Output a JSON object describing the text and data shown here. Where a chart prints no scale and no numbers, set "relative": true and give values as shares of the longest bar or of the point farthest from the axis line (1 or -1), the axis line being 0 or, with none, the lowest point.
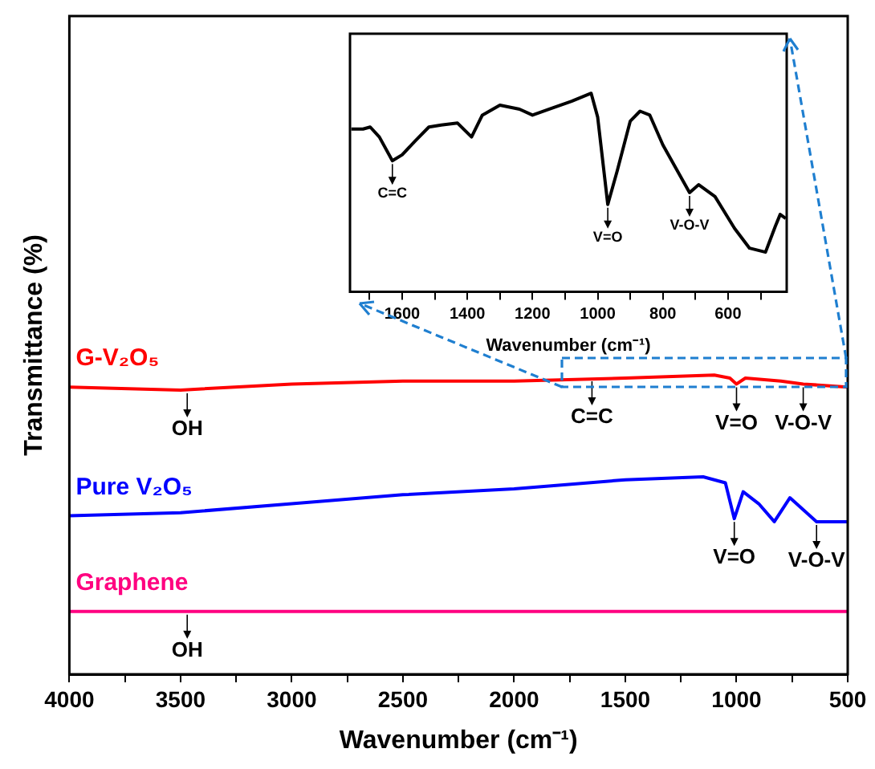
{
  "chart_data": [
    {
      "type": "line",
      "xlabel": "Wavenumber (cm⁻¹)",
      "ylabel": "Transmittance (%)",
      "relative": true,
      "legend": false,
      "grid": false,
      "xlim": [
        4000,
        500
      ],
      "xticks": [
        4000,
        {
          "value": 3750,
          "label": null
        },
        3500,
        {
          "value": 3250,
          "label": null
        },
        3000,
        {
          "value": 2750,
          "label": null
        },
        2500,
        {
          "value": 2250,
          "label": null
        },
        2000,
        {
          "value": 1750,
          "label": null
        },
        1500,
        {
          "value": 1250,
          "label": null
        },
        1000,
        {
          "value": 750,
          "label": null
        },
        500
      ],
      "series": [
        {
          "name": "G-V₂O₅",
          "color": "#ff0000",
          "x": [
            4000,
            3500,
            3000,
            2500,
            2000,
            1500,
            1100,
            1030,
            1000,
            960,
            800,
            700,
            500
          ],
          "values": [
            0.96,
            0.95,
            0.97,
            0.98,
            0.98,
            0.99,
            1,
            0.99,
            0.97,
            0.99,
            0.98,
            0.97,
            0.96
          ]
        },
        {
          "name": "Pure V₂O₅",
          "color": "#0000ff",
          "x": [
            4000,
            3500,
            3000,
            2500,
            2000,
            1500,
            1150,
            1050,
            1010,
            970,
            900,
            830,
            760,
            700,
            640,
            500
          ],
          "values": [
            0.53,
            0.54,
            0.57,
            0.6,
            0.62,
            0.65,
            0.66,
            0.64,
            0.52,
            0.61,
            0.57,
            0.51,
            0.59,
            0.55,
            0.51,
            0.51
          ]
        },
        {
          "name": "Graphene",
          "color": "#ff0080",
          "x": [
            4000,
            3000,
            2000,
            1000,
            500
          ],
          "values": [
            0.21,
            0.21,
            0.21,
            0.21,
            0.21
          ]
        }
      ],
      "annotations": [
        {
          "text": "OH",
          "x": 3470,
          "y": 0.95
        },
        {
          "text": "C=C",
          "x": 1650,
          "y": 0.99
        },
        {
          "text": "V=O",
          "x": 1000,
          "y": 0.97
        },
        {
          "text": "V-O-V",
          "x": 700,
          "y": 0.97
        },
        {
          "text": "V=O",
          "x": 1010,
          "y": 0.52
        },
        {
          "text": "V-O-V",
          "x": 640,
          "y": 0.51
        },
        {
          "text": "OH",
          "x": 3470,
          "y": 0.21
        }
      ]
    },
    {
      "type": "line",
      "xlabel": "Wavenumber (cm⁻¹)",
      "relative": true,
      "legend": false,
      "grid": false,
      "xlim": [
        1760,
        420
      ],
      "xticks": [
        {
          "value": 1700,
          "label": null
        },
        1600,
        {
          "value": 1500,
          "label": null
        },
        1400,
        {
          "value": 1300,
          "label": null
        },
        1200,
        {
          "value": 1100,
          "label": null
        },
        1000,
        {
          "value": 900,
          "label": null
        },
        800,
        {
          "value": 700,
          "label": null
        },
        600,
        {
          "value": 500,
          "label": null
        }
      ],
      "series": [
        {
          "color": "#000000",
          "x": [
            1756,
            1720,
            1698,
            1670,
            1630,
            1600,
            1560,
            1518,
            1480,
            1430,
            1387,
            1354,
            1300,
            1240,
            1200,
            1150,
            1080,
            1020,
            1000,
            969,
            940,
            900,
            870,
            840,
            800,
            718,
            690,
            640,
            580,
            534,
            485,
            455,
            440,
            423
          ],
          "values": [
            0.82,
            0.82,
            0.83,
            0.78,
            0.66,
            0.69,
            0.76,
            0.83,
            0.84,
            0.85,
            0.78,
            0.89,
            0.94,
            0.92,
            0.89,
            0.92,
            0.96,
            1,
            0.88,
            0.44,
            0.61,
            0.86,
            0.91,
            0.89,
            0.74,
            0.5,
            0.54,
            0.48,
            0.32,
            0.22,
            0.2,
            0.33,
            0.39,
            0.37
          ]
        }
      ],
      "annotations": [
        {
          "text": "C=C",
          "x": 1630,
          "y": 0.66
        },
        {
          "text": "V=O",
          "x": 969,
          "y": 0.44
        },
        {
          "text": "V-O-V",
          "x": 718,
          "y": 0.5
        }
      ]
    }
  ]
}
